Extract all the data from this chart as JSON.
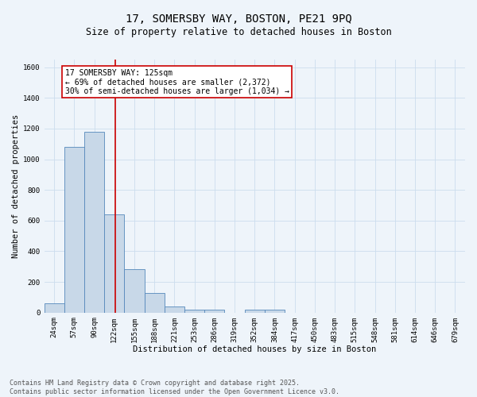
{
  "title_line1": "17, SOMERSBY WAY, BOSTON, PE21 9PQ",
  "title_line2": "Size of property relative to detached houses in Boston",
  "xlabel": "Distribution of detached houses by size in Boston",
  "ylabel": "Number of detached properties",
  "bin_labels": [
    "24sqm",
    "57sqm",
    "90sqm",
    "122sqm",
    "155sqm",
    "188sqm",
    "221sqm",
    "253sqm",
    "286sqm",
    "319sqm",
    "352sqm",
    "384sqm",
    "417sqm",
    "450sqm",
    "483sqm",
    "515sqm",
    "548sqm",
    "581sqm",
    "614sqm",
    "646sqm",
    "679sqm"
  ],
  "bin_edges": [
    7.5,
    40.5,
    73.5,
    106.5,
    139.5,
    172.5,
    205.5,
    238.5,
    271.5,
    304.5,
    337.5,
    370.5,
    403.5,
    436.5,
    469.5,
    502.5,
    535.5,
    568.5,
    601.5,
    634.5,
    667.5,
    700.5
  ],
  "bar_heights": [
    60,
    1080,
    1180,
    640,
    285,
    130,
    40,
    20,
    20,
    0,
    20,
    20,
    0,
    0,
    0,
    0,
    0,
    0,
    0,
    0,
    0
  ],
  "bar_color": "#c8d8e8",
  "bar_edge_color": "#5588bb",
  "red_line_x": 125,
  "red_line_color": "#cc0000",
  "annotation_title": "17 SOMERSBY WAY: 125sqm",
  "annotation_line2": "← 69% of detached houses are smaller (2,372)",
  "annotation_line3": "30% of semi-detached houses are larger (1,034) →",
  "annotation_box_color": "#ffffff",
  "annotation_box_edge": "#cc0000",
  "ylim": [
    0,
    1650
  ],
  "yticks": [
    0,
    200,
    400,
    600,
    800,
    1000,
    1200,
    1400,
    1600
  ],
  "grid_color": "#ccddee",
  "bg_color": "#eef4fa",
  "footer_line1": "Contains HM Land Registry data © Crown copyright and database right 2025.",
  "footer_line2": "Contains public sector information licensed under the Open Government Licence v3.0.",
  "title_fontsize": 10,
  "subtitle_fontsize": 8.5,
  "axis_label_fontsize": 7.5,
  "tick_fontsize": 6.5,
  "annotation_fontsize": 7,
  "footer_fontsize": 6
}
